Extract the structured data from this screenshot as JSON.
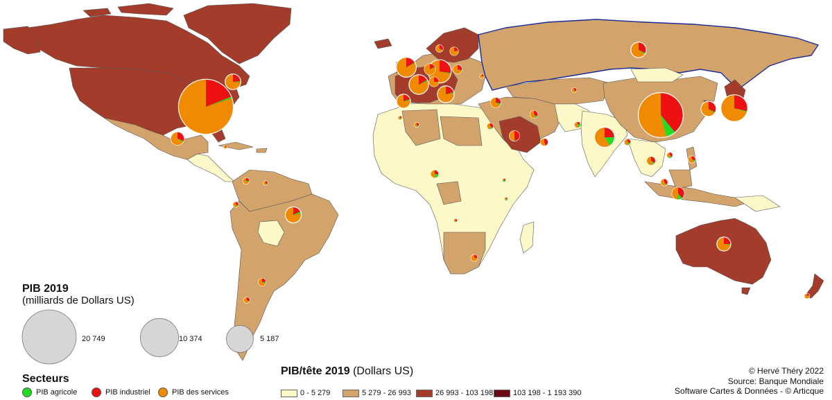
{
  "map_data": {
    "gdp_legend": {
      "title": "PIB 2019",
      "unit": "(milliards de Dollars US)",
      "sizes": [
        {
          "value": 20749,
          "label": "20 749"
        },
        {
          "value": 10374,
          "label": "10 374"
        },
        {
          "value": 5187,
          "label": "5 187"
        }
      ]
    },
    "sectors": {
      "title": "Secteurs",
      "items": [
        {
          "key": "agri",
          "label": "PIB agricole",
          "color": "#22dd22"
        },
        {
          "key": "ind",
          "label": "PIB industriel",
          "color": "#ee1111"
        },
        {
          "key": "serv",
          "label": "PIB des services",
          "color": "#f08a00"
        }
      ]
    },
    "gdp_per_capita": {
      "title_bold": "PIB/tête 2019",
      "title_unit": "(Dollars US)",
      "classes": [
        {
          "label": "0 - 5 279",
          "color": "#fdf8c8"
        },
        {
          "label": "5 279 - 26 993",
          "color": "#d2a36b"
        },
        {
          "label": "26 993 - 103 198",
          "color": "#a33c2b"
        },
        {
          "label": "103 198 - 1 193 390",
          "color": "#6a0c17"
        }
      ]
    },
    "credits": {
      "line1": "© Hervé Théry 2022",
      "line2": "Source: Banque Mondiale",
      "line3": "Software Cartes & Données - © Articque"
    },
    "colors": {
      "ocean": "#ffffff",
      "border": "#555555",
      "russia_border": "#1a2a9a",
      "bubble_stroke": "#ffffff"
    },
    "pies": [
      {
        "place": "Etats-Unis",
        "gdp": 21400,
        "agri": 1,
        "ind": 19,
        "serv": 80
      },
      {
        "place": "Chine",
        "gdp": 14300,
        "agri": 7,
        "ind": 39,
        "serv": 54
      },
      {
        "place": "Japon",
        "gdp": 5100,
        "agri": 1,
        "ind": 29,
        "serv": 70
      },
      {
        "place": "Allemagne",
        "gdp": 3860,
        "agri": 1,
        "ind": 27,
        "serv": 72
      },
      {
        "place": "Inde",
        "gdp": 2870,
        "agri": 16,
        "ind": 25,
        "serv": 59
      },
      {
        "place": "Royaume-Uni",
        "gdp": 2830,
        "agri": 1,
        "ind": 17,
        "serv": 82
      },
      {
        "place": "France",
        "gdp": 2710,
        "agri": 2,
        "ind": 17,
        "serv": 81
      },
      {
        "place": "Italie",
        "gdp": 2000,
        "agri": 2,
        "ind": 21,
        "serv": 77
      },
      {
        "place": "Brésil",
        "gdp": 1840,
        "agri": 4,
        "ind": 18,
        "serv": 78
      },
      {
        "place": "Canada",
        "gdp": 1740,
        "agri": 2,
        "ind": 24,
        "serv": 74
      },
      {
        "place": "Russie",
        "gdp": 1700,
        "agri": 3,
        "ind": 32,
        "serv": 65
      },
      {
        "place": "Corée du Sud",
        "gdp": 1640,
        "agri": 2,
        "ind": 33,
        "serv": 65
      },
      {
        "place": "Espagne",
        "gdp": 1390,
        "agri": 3,
        "ind": 20,
        "serv": 77
      },
      {
        "place": "Australie",
        "gdp": 1390,
        "agri": 2,
        "ind": 25,
        "serv": 73
      },
      {
        "place": "Mexique",
        "gdp": 1260,
        "agri": 3,
        "ind": 31,
        "serv": 66
      },
      {
        "place": "Indonésie",
        "gdp": 1120,
        "agri": 13,
        "ind": 39,
        "serv": 48
      },
      {
        "place": "Pays-Bas",
        "gdp": 910,
        "agri": 2,
        "ind": 18,
        "serv": 80
      },
      {
        "place": "Arabie saoudite",
        "gdp": 790,
        "agri": 2,
        "ind": 49,
        "serv": 49
      },
      {
        "place": "Turquie",
        "gdp": 760,
        "agri": 6,
        "ind": 28,
        "serv": 66
      },
      {
        "place": "Suisse",
        "gdp": 700,
        "agri": 1,
        "ind": 25,
        "serv": 74
      },
      {
        "place": "Pologne",
        "gdp": 590,
        "agri": 2,
        "ind": 29,
        "serv": 69
      },
      {
        "place": "Suède",
        "gdp": 530,
        "agri": 1,
        "ind": 22,
        "serv": 77
      },
      {
        "place": "Argentine",
        "gdp": 450,
        "agri": 6,
        "ind": 24,
        "serv": 70
      },
      {
        "place": "Norvège",
        "gdp": 400,
        "agri": 2,
        "ind": 32,
        "serv": 66
      },
      {
        "place": "Nigeria",
        "gdp": 450,
        "agri": 22,
        "ind": 27,
        "serv": 51
      },
      {
        "place": "Iran",
        "gdp": 450,
        "agri": 9,
        "ind": 35,
        "serv": 56
      },
      {
        "place": "Thaïlande",
        "gdp": 540,
        "agri": 8,
        "ind": 34,
        "serv": 58
      },
      {
        "place": "Afrique du Sud",
        "gdp": 350,
        "agri": 2,
        "ind": 26,
        "serv": 72
      },
      {
        "place": "Egypte",
        "gdp": 300,
        "agri": 11,
        "ind": 35,
        "serv": 54
      },
      {
        "place": "Colombie",
        "gdp": 320,
        "agri": 7,
        "ind": 26,
        "serv": 67
      },
      {
        "place": "Chili",
        "gdp": 280,
        "agri": 4,
        "ind": 31,
        "serv": 65
      },
      {
        "place": "Pakistan",
        "gdp": 280,
        "agri": 23,
        "ind": 19,
        "serv": 58
      },
      {
        "place": "Philippines",
        "gdp": 380,
        "agri": 9,
        "ind": 30,
        "serv": 61
      },
      {
        "place": "Malaisie",
        "gdp": 360,
        "agri": 7,
        "ind": 38,
        "serv": 55
      },
      {
        "place": "Vietnam",
        "gdp": 260,
        "agri": 14,
        "ind": 35,
        "serv": 51
      },
      {
        "place": "Algérie",
        "gdp": 170,
        "agri": 12,
        "ind": 37,
        "serv": 51
      },
      {
        "place": "Pérou",
        "gdp": 230,
        "agri": 7,
        "ind": 32,
        "serv": 61
      },
      {
        "place": "Ukraine",
        "gdp": 150,
        "agri": 9,
        "ind": 23,
        "serv": 68
      },
      {
        "place": "Kazakhstan",
        "gdp": 180,
        "agri": 5,
        "ind": 33,
        "serv": 62
      },
      {
        "place": "Maroc",
        "gdp": 120,
        "agri": 12,
        "ind": 26,
        "serv": 62
      },
      {
        "place": "Venezuela",
        "gdp": 150,
        "agri": 5,
        "ind": 35,
        "serv": 60
      },
      {
        "place": "Bangladesh",
        "gdp": 300,
        "agri": 13,
        "ind": 30,
        "serv": 57
      },
      {
        "place": "Emirats",
        "gdp": 420,
        "agri": 1,
        "ind": 45,
        "serv": 54
      },
      {
        "place": "Kenya",
        "gdp": 95,
        "agri": 34,
        "ind": 17,
        "serv": 49
      },
      {
        "place": "Ethiopie",
        "gdp": 95,
        "agri": 33,
        "ind": 25,
        "serv": 42
      },
      {
        "place": "Angola",
        "gdp": 90,
        "agri": 8,
        "ind": 48,
        "serv": 44
      },
      {
        "place": "Nouvelle-Zélande",
        "gdp": 210,
        "agri": 6,
        "ind": 20,
        "serv": 74
      },
      {
        "place": "Cuba",
        "gdp": 100,
        "agri": 4,
        "ind": 23,
        "serv": 73
      }
    ]
  }
}
